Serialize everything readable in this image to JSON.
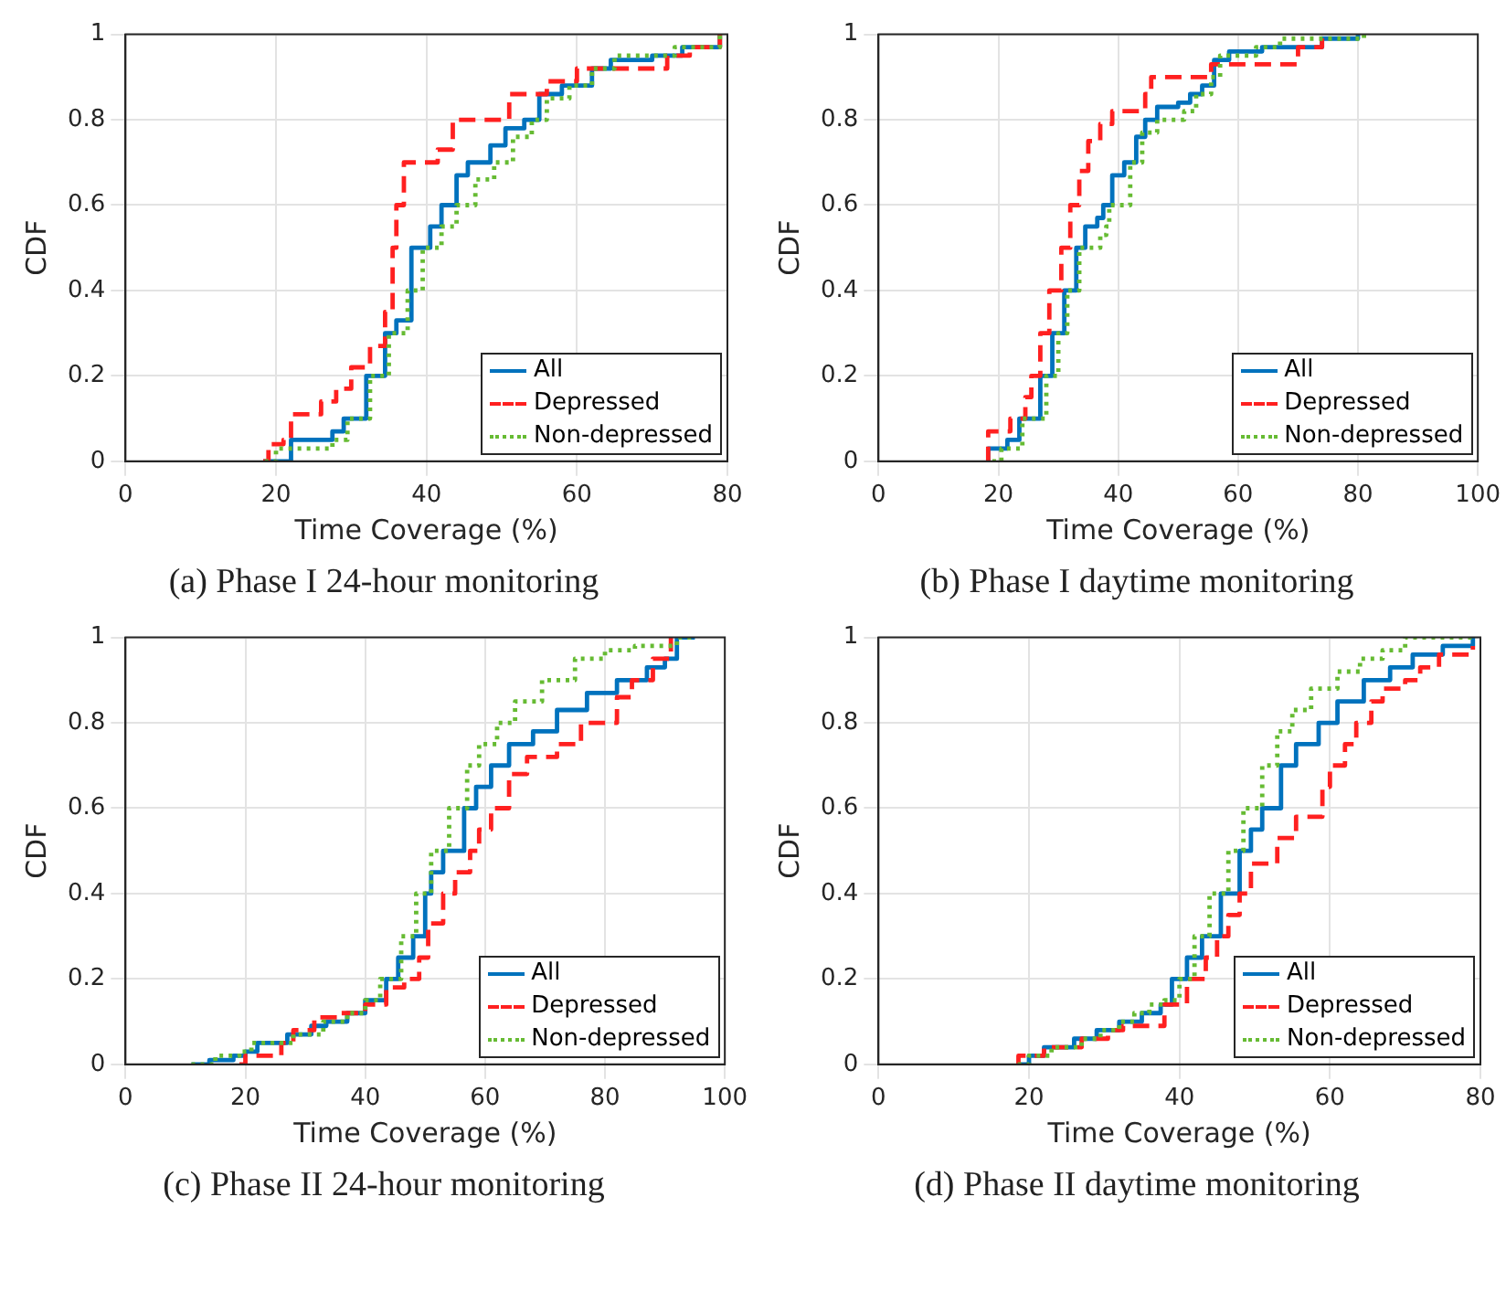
{
  "chart_data": [
    {
      "type": "step",
      "xlabel": "Time Coverage (%)",
      "ylabel": "CDF",
      "annotations": [
        "(a) Phase I 24-hour monitoring"
      ],
      "xlim": [
        0,
        80
      ],
      "xticks": [
        0,
        20,
        40,
        60,
        80
      ],
      "ylim": [
        0,
        1
      ],
      "yticks": [
        0,
        0.2,
        0.4,
        0.6,
        0.8,
        1
      ],
      "grid": true,
      "legend": "bottom right",
      "series": [
        {
          "name": "All",
          "color": "#0072bd",
          "line_style": "solid",
          "x": [
            18.3,
            22,
            26.5,
            27.5,
            29,
            32,
            34.5,
            36,
            38,
            40.5,
            42,
            44,
            45.5,
            48.5,
            50.5,
            53,
            55,
            58,
            62,
            64.5,
            70,
            74,
            79
          ],
          "values": [
            0,
            0.05,
            0.05,
            0.07,
            0.1,
            0.2,
            0.3,
            0.33,
            0.5,
            0.55,
            0.6,
            0.67,
            0.7,
            0.74,
            0.78,
            0.8,
            0.86,
            0.88,
            0.92,
            0.94,
            0.95,
            0.97,
            1
          ]
        },
        {
          "name": "Depressed",
          "color": "#ff2020",
          "line_style": "dashed",
          "x": [
            18.3,
            19,
            21,
            22,
            26,
            28,
            30,
            32.5,
            34.5,
            35.5,
            36,
            37,
            41.5,
            43.5,
            51,
            56,
            60,
            72,
            75,
            79
          ],
          "values": [
            0,
            0.04,
            0.05,
            0.11,
            0.14,
            0.17,
            0.22,
            0.27,
            0.35,
            0.5,
            0.6,
            0.7,
            0.73,
            0.8,
            0.86,
            0.89,
            0.92,
            0.95,
            0.97,
            1
          ]
        },
        {
          "name": "Non-depressed",
          "color": "#66bb33",
          "line_style": "dotted",
          "x": [
            18.5,
            20,
            27,
            27.5,
            29.5,
            32.5,
            35,
            37.5,
            39.5,
            42,
            44,
            46.5,
            49,
            51.5,
            54,
            56,
            59,
            62,
            65,
            73,
            79
          ],
          "values": [
            0,
            0.03,
            0.03,
            0.05,
            0.1,
            0.2,
            0.3,
            0.4,
            0.5,
            0.55,
            0.6,
            0.66,
            0.7,
            0.76,
            0.8,
            0.85,
            0.88,
            0.92,
            0.95,
            0.97,
            1
          ]
        }
      ]
    },
    {
      "type": "step",
      "xlabel": "Time Coverage (%)",
      "ylabel": "CDF",
      "annotations": [
        "(b) Phase I daytime monitoring"
      ],
      "xlim": [
        0,
        100
      ],
      "xticks": [
        0,
        20,
        40,
        60,
        80,
        100
      ],
      "ylim": [
        0,
        1
      ],
      "yticks": [
        0,
        0.2,
        0.4,
        0.6,
        0.8,
        1
      ],
      "grid": true,
      "legend": "bottom right",
      "series": [
        {
          "name": "All",
          "color": "#0072bd",
          "line_style": "solid",
          "x": [
            18,
            18.3,
            21,
            21.5,
            23.5,
            27,
            29,
            31,
            33,
            34.5,
            36.5,
            37.5,
            39,
            41,
            43,
            44.5,
            46.5,
            50,
            52,
            54,
            56,
            58.5,
            64,
            74,
            80
          ],
          "values": [
            0,
            0.03,
            0.03,
            0.05,
            0.1,
            0.2,
            0.3,
            0.4,
            0.5,
            0.55,
            0.57,
            0.6,
            0.67,
            0.7,
            0.76,
            0.8,
            0.83,
            0.84,
            0.86,
            0.88,
            0.94,
            0.96,
            0.97,
            0.99,
            1
          ]
        },
        {
          "name": "Depressed",
          "color": "#ff2020",
          "line_style": "dashed",
          "x": [
            18,
            18.3,
            22,
            24.5,
            25.5,
            27,
            28.5,
            30.5,
            32,
            33.5,
            35,
            37,
            39,
            44.5,
            45.5,
            55.5,
            70,
            74
          ],
          "values": [
            0,
            0.07,
            0.1,
            0.15,
            0.2,
            0.3,
            0.4,
            0.5,
            0.6,
            0.68,
            0.75,
            0.79,
            0.82,
            0.86,
            0.9,
            0.93,
            0.97,
            1
          ]
        },
        {
          "name": "Non-depressed",
          "color": "#66bb33",
          "line_style": "dotted",
          "x": [
            19,
            20.5,
            24,
            28,
            30,
            31.5,
            33.5,
            37,
            38,
            38.5,
            42,
            44,
            46.5,
            51,
            53,
            55.5,
            57,
            63,
            67,
            81
          ],
          "values": [
            0,
            0.03,
            0.1,
            0.2,
            0.3,
            0.4,
            0.5,
            0.53,
            0.55,
            0.6,
            0.7,
            0.77,
            0.8,
            0.82,
            0.86,
            0.9,
            0.95,
            0.97,
            0.99,
            1
          ]
        }
      ]
    },
    {
      "type": "step",
      "xlabel": "Time Coverage (%)",
      "ylabel": "CDF",
      "annotations": [
        "(c) Phase II 24-hour monitoring"
      ],
      "xlim": [
        0,
        100
      ],
      "xticks": [
        0,
        20,
        40,
        60,
        80,
        100
      ],
      "ylim": [
        0,
        1
      ],
      "yticks": [
        0,
        0.2,
        0.4,
        0.6,
        0.8,
        1
      ],
      "grid": true,
      "legend": "bottom right",
      "series": [
        {
          "name": "All",
          "color": "#0072bd",
          "line_style": "solid",
          "x": [
            11,
            14,
            18,
            20,
            22,
            27,
            31,
            33.5,
            37,
            40,
            43.5,
            45.5,
            48,
            50,
            51,
            53,
            56.5,
            58.5,
            61,
            64,
            68,
            72,
            77,
            82,
            87,
            90,
            92,
            95
          ],
          "values": [
            0,
            0.01,
            0.02,
            0.03,
            0.05,
            0.07,
            0.09,
            0.1,
            0.12,
            0.15,
            0.2,
            0.25,
            0.3,
            0.4,
            0.45,
            0.5,
            0.6,
            0.65,
            0.7,
            0.75,
            0.78,
            0.83,
            0.87,
            0.9,
            0.93,
            0.95,
            1,
            1
          ]
        },
        {
          "name": "Depressed",
          "color": "#ff2020",
          "line_style": "dashed",
          "x": [
            19,
            20,
            26,
            28,
            31.5,
            36,
            40,
            43.5,
            46.5,
            49,
            50.5,
            53,
            55,
            57.5,
            59,
            61,
            64,
            67,
            72,
            76,
            82,
            84.5,
            88,
            91
          ],
          "values": [
            0,
            0.02,
            0.05,
            0.08,
            0.11,
            0.12,
            0.14,
            0.18,
            0.2,
            0.25,
            0.33,
            0.4,
            0.45,
            0.5,
            0.55,
            0.6,
            0.68,
            0.72,
            0.75,
            0.8,
            0.86,
            0.9,
            0.95,
            1
          ]
        },
        {
          "name": "Non-depressed",
          "color": "#66bb33",
          "line_style": "dotted",
          "x": [
            11,
            15,
            19,
            21,
            28,
            33,
            37,
            40,
            42.5,
            46,
            48.5,
            51,
            54,
            57,
            59,
            62,
            65,
            69.5,
            75,
            80,
            85,
            92,
            95
          ],
          "values": [
            0,
            0.02,
            0.03,
            0.05,
            0.07,
            0.1,
            0.12,
            0.15,
            0.2,
            0.3,
            0.4,
            0.5,
            0.6,
            0.7,
            0.75,
            0.8,
            0.85,
            0.9,
            0.95,
            0.97,
            0.98,
            1,
            1
          ]
        }
      ]
    },
    {
      "type": "step",
      "xlabel": "Time Coverage (%)",
      "ylabel": "CDF",
      "annotations": [
        "(d) Phase II daytime monitoring"
      ],
      "xlim": [
        0,
        80
      ],
      "xticks": [
        0,
        20,
        40,
        60,
        80
      ],
      "ylim": [
        0,
        1
      ],
      "yticks": [
        0,
        0.2,
        0.4,
        0.6,
        0.8,
        1
      ],
      "grid": true,
      "legend": "bottom right",
      "series": [
        {
          "name": "All",
          "color": "#0072bd",
          "line_style": "solid",
          "x": [
            18.5,
            20,
            22,
            26,
            29,
            32,
            35,
            37.5,
            39,
            41,
            43,
            45.5,
            48,
            49.5,
            51,
            53.5,
            55.5,
            58.5,
            61,
            64.5,
            68,
            71,
            75,
            79
          ],
          "values": [
            0,
            0.02,
            0.04,
            0.06,
            0.08,
            0.1,
            0.12,
            0.14,
            0.2,
            0.25,
            0.3,
            0.4,
            0.5,
            0.55,
            0.6,
            0.7,
            0.75,
            0.8,
            0.85,
            0.9,
            0.93,
            0.96,
            0.98,
            1
          ]
        },
        {
          "name": "Depressed",
          "color": "#ff2020",
          "line_style": "dashed",
          "x": [
            18.5,
            18.6,
            22,
            27,
            30.5,
            32.5,
            38,
            41,
            43.5,
            45,
            46.5,
            48,
            49.5,
            53,
            55.5,
            59,
            60,
            62,
            63.5,
            65.5,
            67,
            70,
            72,
            74.5,
            79
          ],
          "values": [
            0,
            0.02,
            0.04,
            0.06,
            0.08,
            0.09,
            0.14,
            0.2,
            0.25,
            0.3,
            0.35,
            0.4,
            0.47,
            0.53,
            0.58,
            0.65,
            0.7,
            0.75,
            0.8,
            0.85,
            0.88,
            0.9,
            0.93,
            0.96,
            0.98
          ]
        },
        {
          "name": "Non-depressed",
          "color": "#66bb33",
          "line_style": "dotted",
          "x": [
            18.5,
            20,
            23,
            27,
            29.5,
            32,
            34,
            36,
            38,
            40,
            42,
            44,
            46.5,
            48.5,
            51,
            53,
            55,
            57.5,
            61,
            64,
            67,
            70,
            79
          ],
          "values": [
            0,
            0.02,
            0.04,
            0.06,
            0.08,
            0.1,
            0.12,
            0.14,
            0.15,
            0.2,
            0.3,
            0.4,
            0.5,
            0.6,
            0.7,
            0.78,
            0.83,
            0.88,
            0.92,
            0.95,
            0.97,
            1,
            1
          ]
        }
      ]
    }
  ]
}
